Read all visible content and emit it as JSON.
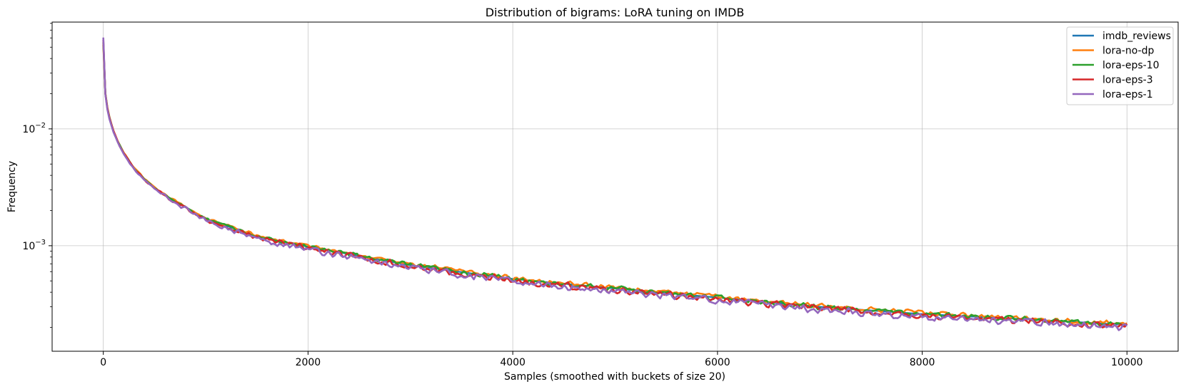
{
  "chart_data": {
    "type": "line",
    "title": "Distribution of bigrams: LoRA tuning on IMDB",
    "xlabel": "Samples (smoothed with buckets of size 20)",
    "ylabel": "Frequency",
    "xlim": [
      -500,
      10500
    ],
    "ylim": [
      0.000125,
      0.082
    ],
    "yscale": "log",
    "grid": true,
    "legend_position": "top-right",
    "x_ticks": [
      0,
      2000,
      4000,
      6000,
      8000,
      10000
    ],
    "y_ticks": [
      {
        "value": 0.01,
        "base": "10",
        "exp": "−2"
      },
      {
        "value": 0.001,
        "base": "10",
        "exp": "−3"
      }
    ],
    "series": [
      {
        "name": "imdb_reviews",
        "color": "#1f77b4"
      },
      {
        "name": "lora-no-dp",
        "color": "#ff7f0e"
      },
      {
        "name": "lora-eps-10",
        "color": "#2ca02c"
      },
      {
        "name": "lora-eps-3",
        "color": "#d62728"
      },
      {
        "name": "lora-eps-1",
        "color": "#9467bd"
      }
    ],
    "base_curve": {
      "x": [
        0,
        20,
        40,
        60,
        100,
        150,
        200,
        300,
        400,
        500,
        700,
        1000,
        1500,
        2000,
        3000,
        4000,
        5000,
        6000,
        7000,
        8000,
        9000,
        10000
      ],
      "y": [
        0.055,
        0.02,
        0.015,
        0.0125,
        0.0095,
        0.0075,
        0.0062,
        0.0046,
        0.0037,
        0.0031,
        0.0024,
        0.0017,
        0.0012,
        0.00098,
        0.00068,
        0.00052,
        0.00043,
        0.00036,
        0.0003,
        0.00026,
        0.000235,
        0.00021
      ]
    }
  }
}
